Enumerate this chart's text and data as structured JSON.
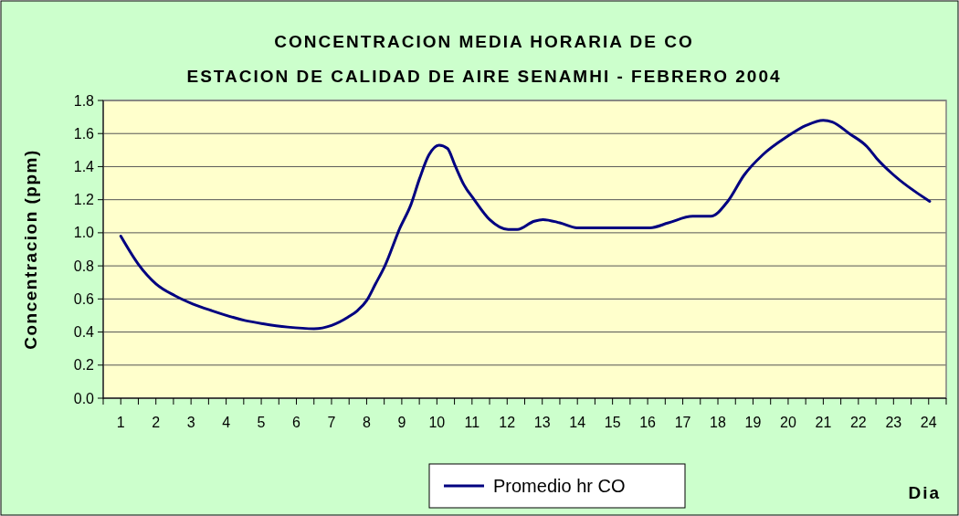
{
  "chart_data": {
    "type": "line",
    "title": "CONCENTRACION MEDIA HORARIA DE CO",
    "subtitle": "ESTACION DE CALIDAD DE AIRE SENAMHI - FEBRERO 2004",
    "xlabel": "Dia",
    "ylabel": "Concentracion (ppm)",
    "xlim": [
      0.5,
      24.5
    ],
    "xticks": [
      {
        "value": 0.5,
        "label": null
      },
      1,
      {
        "value": 1.5,
        "label": null
      },
      2,
      {
        "value": 2.5,
        "label": null
      },
      3,
      {
        "value": 3.5,
        "label": null
      },
      4,
      {
        "value": 4.5,
        "label": null
      },
      5,
      {
        "value": 5.5,
        "label": null
      },
      6,
      {
        "value": 6.5,
        "label": null
      },
      7,
      {
        "value": 7.5,
        "label": null
      },
      8,
      {
        "value": 8.5,
        "label": null
      },
      9,
      {
        "value": 9.5,
        "label": null
      },
      10,
      {
        "value": 10.5,
        "label": null
      },
      11,
      {
        "value": 11.5,
        "label": null
      },
      12,
      {
        "value": 12.5,
        "label": null
      },
      13,
      {
        "value": 13.5,
        "label": null
      },
      14,
      {
        "value": 14.5,
        "label": null
      },
      15,
      {
        "value": 15.5,
        "label": null
      },
      16,
      {
        "value": 16.5,
        "label": null
      },
      17,
      {
        "value": 17.5,
        "label": null
      },
      18,
      {
        "value": 18.5,
        "label": null
      },
      19,
      {
        "value": 19.5,
        "label": null
      },
      20,
      {
        "value": 20.5,
        "label": null
      },
      21,
      {
        "value": 21.5,
        "label": null
      },
      22,
      {
        "value": 22.5,
        "label": null
      },
      23,
      {
        "value": 23.5,
        "label": null
      },
      24,
      {
        "value": 24.5,
        "label": null
      }
    ],
    "ylim": [
      0,
      1.8
    ],
    "yticks": [
      {
        "value": 0,
        "label": "0.0"
      },
      0.2,
      0.4,
      0.6,
      0.8,
      {
        "value": 1,
        "label": "1.0"
      },
      1.2,
      1.4,
      1.6,
      1.8
    ],
    "grid": "y",
    "legend": "bottom",
    "series": [
      {
        "name": "Promedio hr CO",
        "color": "#000080",
        "x": [
          1,
          1.5,
          2.01,
          2.54,
          3.05,
          3.58,
          4.53,
          5.05,
          5.75,
          6.5,
          7,
          7.47,
          7.74,
          8,
          8.25,
          8.52,
          8.95,
          9.26,
          9.51,
          9.77,
          10.06,
          10.3,
          10.51,
          10.77,
          11.03,
          11.5,
          12.03,
          12.29,
          12.77,
          13.02,
          13.5,
          13.99,
          16.07,
          16.59,
          17.28,
          17.8,
          18.28,
          18.75,
          19.27,
          19.96,
          20.52,
          21,
          21.26,
          21.74,
          22.25,
          22.52,
          23,
          24.03
        ],
        "values": [
          0.98,
          0.81,
          0.69,
          0.62,
          0.57,
          0.53,
          0.47,
          0.45,
          0.43,
          0.42,
          0.44,
          0.49,
          0.53,
          0.59,
          0.69,
          0.8,
          1.03,
          1.17,
          1.33,
          1.47,
          1.53,
          1.51,
          1.41,
          1.29,
          1.21,
          1.08,
          1.02,
          1.02,
          1.07,
          1.08,
          1.06,
          1.03,
          1.03,
          1.06,
          1.1,
          1.1,
          1.19,
          1.35,
          1.47,
          1.58,
          1.65,
          1.68,
          1.67,
          1.6,
          1.52,
          1.45,
          1.35,
          1.19
        ]
      }
    ]
  }
}
